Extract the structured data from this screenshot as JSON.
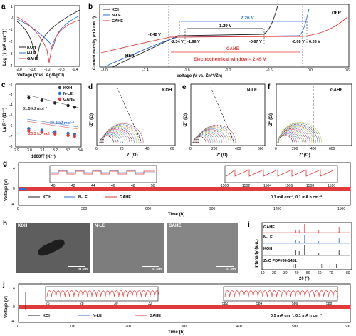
{
  "panels": {
    "a": "a",
    "b": "b",
    "c": "c",
    "d": "d",
    "e": "e",
    "f": "f",
    "g": "g",
    "h": "h",
    "i": "i",
    "j": "j"
  },
  "legend": {
    "koh": "KOH",
    "nle": "N-LE",
    "gahe": "GAHE"
  },
  "colors": {
    "koh": "#222222",
    "nle": "#2f6fd6",
    "gahe": "#e03a3a"
  },
  "chart_data": [
    {
      "id": "a",
      "type": "line",
      "xlabel": "Voltage (V vs. Ag/AgCl)",
      "ylabel": "Log ( j (mA cm⁻²) )",
      "xlim": [
        -2.0,
        -0.4
      ],
      "ylim": [
        -4,
        1
      ],
      "xticks": [
        "-2.0",
        "-1.6",
        "-1.2",
        "-0.8",
        "-0.4"
      ],
      "yticks": [
        "-4",
        "-3",
        "-2",
        "-1",
        "0",
        "1"
      ],
      "series": [
        {
          "name": "KOH",
          "corrosion_potential": -1.5,
          "min_log_j": -3.0
        },
        {
          "name": "N-LE",
          "corrosion_potential": -1.15,
          "min_log_j": -2.6
        },
        {
          "name": "GAHE",
          "corrosion_potential": -1.2,
          "min_log_j": -3.4
        }
      ]
    },
    {
      "id": "b",
      "type": "line",
      "xlabel": "Voltage (V vs. Zn²⁺/Zn)",
      "ylabel": "Current density (mA cm⁻²)",
      "xlim": [
        -3.0,
        0.6
      ],
      "ylim": [
        -10,
        10
      ],
      "xticks": [
        "-3.0",
        "-2.4",
        "-1.8",
        "-1.2",
        "-0.6",
        "0.0",
        "0.6"
      ],
      "annotations": {
        "window_nle": "2.26 V",
        "window_koh": "1.29 V",
        "window_gahe": "GAHE",
        "v_gahe_left": "-2.42 V",
        "v_nle_left": "-2.34 V",
        "v_koh_left": "-1.96 V",
        "v_koh_right": "-0.67 V",
        "v_nle_right": "-0.08 V",
        "v_gahe_right": "0.03 V",
        "her": "HER",
        "oer": "OER",
        "window": "Electrochemical window = 2.45 V"
      }
    },
    {
      "id": "c",
      "type": "scatter",
      "xlabel": "1000/T (K⁻¹)",
      "ylabel": "Ln R⁻¹ (Ω⁻¹)",
      "xlim": [
        2.9,
        3.4
      ],
      "ylim": [
        -8,
        -2
      ],
      "xticks": [
        "2.9",
        "3.0",
        "3.1",
        "3.2",
        "3.3",
        "3.4"
      ],
      "yticks": [
        "-8",
        "-7",
        "-6",
        "-5",
        "-4",
        "-3",
        "-2"
      ],
      "x": [
        3.0,
        3.1,
        3.2,
        3.3,
        3.35
      ],
      "series": [
        {
          "name": "KOH",
          "values": [
            -3.3,
            -3.55,
            -3.8,
            -4.05,
            -4.2
          ],
          "label": "31.5 kJ mol⁻¹"
        },
        {
          "name": "N-LE",
          "values": [
            -6.25,
            -6.4,
            -6.55,
            -6.7,
            -6.78
          ],
          "label": "30.8 kJ mol⁻¹"
        },
        {
          "name": "GAHE",
          "values": [
            -6.45,
            -6.6,
            -6.75,
            -6.9,
            -6.97
          ],
          "label": "26.3 kJ mol⁻¹"
        }
      ]
    },
    {
      "id": "d",
      "type": "line",
      "title": "KOH",
      "xlabel": "Z' (Ω)",
      "ylabel": "-Z'' (Ω)",
      "xlim": [
        0,
        60
      ],
      "xticks": [
        "0",
        "20",
        "40",
        "60"
      ],
      "arcs": 14
    },
    {
      "id": "e",
      "type": "line",
      "title": "N-LE",
      "xlabel": "Z' (Ω)",
      "ylabel": "-Z'' (Ω)",
      "xlim": [
        0,
        600
      ],
      "xticks": [
        "0",
        "200",
        "400",
        "600"
      ],
      "arcs": 14
    },
    {
      "id": "f",
      "type": "line",
      "title": "GAHE",
      "xlabel": "Z' (Ω)",
      "ylabel": "-Z'' (Ω)",
      "xlim": [
        0,
        600
      ],
      "xticks": [
        "0",
        "200",
        "400",
        "600"
      ],
      "arcs": 16
    },
    {
      "id": "g",
      "type": "line",
      "xlabel": "Time (h)",
      "ylabel": "Voltage (V)",
      "xlim": [
        0,
        1500
      ],
      "ylim": [
        -4,
        4
      ],
      "xticks": [
        "0",
        "300",
        "600",
        "900",
        "1200",
        "1500"
      ],
      "yticks": [
        "-4",
        "0",
        "4"
      ],
      "inset1": {
        "xticks": [
          "40",
          "42",
          "44",
          "46",
          "48",
          "50"
        ]
      },
      "inset2": {
        "xticks": [
          "1500",
          "1502",
          "1504",
          "1506",
          "1508",
          "1510"
        ]
      },
      "condition": "0.1 mA cm⁻², 0.1 mA h cm⁻²"
    },
    {
      "id": "i",
      "type": "line",
      "xlabel": "2θ (°)",
      "ylabel": "Intensity (a.u.)",
      "xlim": [
        10,
        80
      ],
      "xticks": [
        "10",
        "20",
        "30",
        "40",
        "50",
        "60",
        "70",
        "80"
      ],
      "series": [
        {
          "name": "GAHE"
        },
        {
          "name": "N-LE"
        },
        {
          "name": "KOH"
        },
        {
          "name": "ZnO PDF#36-1451"
        }
      ],
      "peaks": [
        36.3,
        39.0,
        43.2,
        54.3,
        70.1,
        70.7
      ]
    },
    {
      "id": "j",
      "type": "line",
      "xlabel": "Time (h)",
      "ylabel": "Voltage (V)",
      "xlim": [
        0,
        600
      ],
      "ylim": [
        -4,
        4
      ],
      "xticks": [
        "0",
        "100",
        "200",
        "300",
        "400",
        "500",
        "600"
      ],
      "yticks": [
        "-4",
        "0",
        "4"
      ],
      "inset1": {
        "xticks": [
          "26",
          "28",
          "30",
          "32"
        ]
      },
      "inset2": {
        "xticks": [
          "582",
          "584",
          "586",
          "588"
        ]
      },
      "condition": "0.5 mA cm⁻², 0.1 mA h cm⁻²"
    }
  ],
  "sem": [
    {
      "label": "KOH",
      "scalebar": "10 μm"
    },
    {
      "label": "N-LE",
      "scalebar": "10 μm"
    },
    {
      "label": "GAHE",
      "scalebar": "10 μm"
    }
  ]
}
